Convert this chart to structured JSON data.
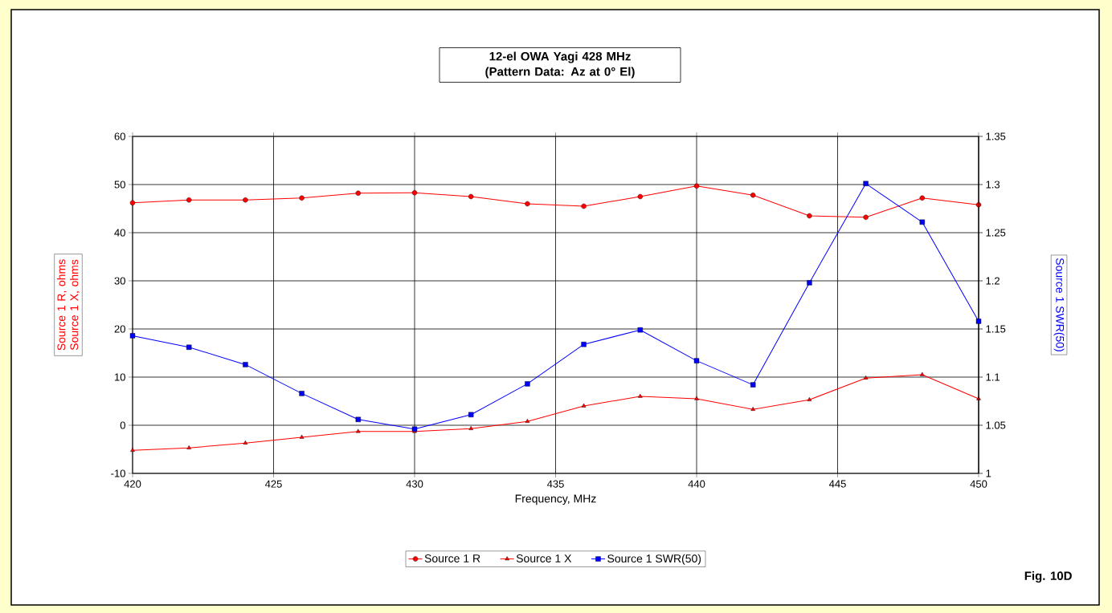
{
  "chart_data": {
    "type": "line",
    "title": "12-el OWA Yagi 428 MHz (Pattern Data: Az at 0° El)",
    "xlabel": "Frequency, MHz",
    "ylabel": "Source 1 R,  ohms Source 1 X,  ohms",
    "y2label": "Source 1 SWR(50)",
    "annotations": [
      "Fig. 10D"
    ],
    "x": [
      420,
      422,
      424,
      426,
      428,
      430,
      432,
      434,
      436,
      438,
      440,
      442,
      444,
      446,
      448,
      450
    ],
    "series": [
      {
        "name": "Source 1 R",
        "color": "#ff0000",
        "marker": "circle",
        "values": [
          46.2,
          46.8,
          46.8,
          47.2,
          48.2,
          48.3,
          47.5,
          46,
          45.5,
          47.5,
          49.7,
          47.8,
          43.5,
          43.2,
          47.2,
          45.8
        ]
      },
      {
        "name": "Source 1 X",
        "color": "#ff0000",
        "marker": "triangle",
        "values": [
          -5.2,
          -4.7,
          -3.7,
          -2.5,
          -1.3,
          -1.3,
          -0.7,
          0.8,
          4,
          6,
          5.5,
          3.3,
          5.3,
          9.8,
          10.5,
          5.5
        ]
      },
      {
        "name": "Source 1 SWR(50)",
        "color": "#0000ff",
        "marker": "square",
        "axis": "y2",
        "values": [
          1.143,
          1.131,
          1.113,
          1.083,
          1.056,
          1.046,
          1.061,
          1.093,
          1.134,
          1.149,
          1.117,
          1.092,
          1.198,
          1.301,
          1.261,
          1.158
        ]
      }
    ],
    "xlim": [
      420,
      450
    ],
    "xticks": [
      420,
      425,
      430,
      435,
      440,
      445,
      450
    ],
    "ylim": [
      -10,
      60
    ],
    "yticks": [
      -10,
      0,
      10,
      20,
      30,
      40,
      50,
      60
    ],
    "y2lim": [
      1,
      1.35
    ],
    "y2ticks": [
      1,
      1.05,
      1.1,
      1.15,
      1.2,
      1.25,
      1.3,
      1.35
    ],
    "grid": true,
    "legend": "bottom",
    "line_style": "solid"
  }
}
